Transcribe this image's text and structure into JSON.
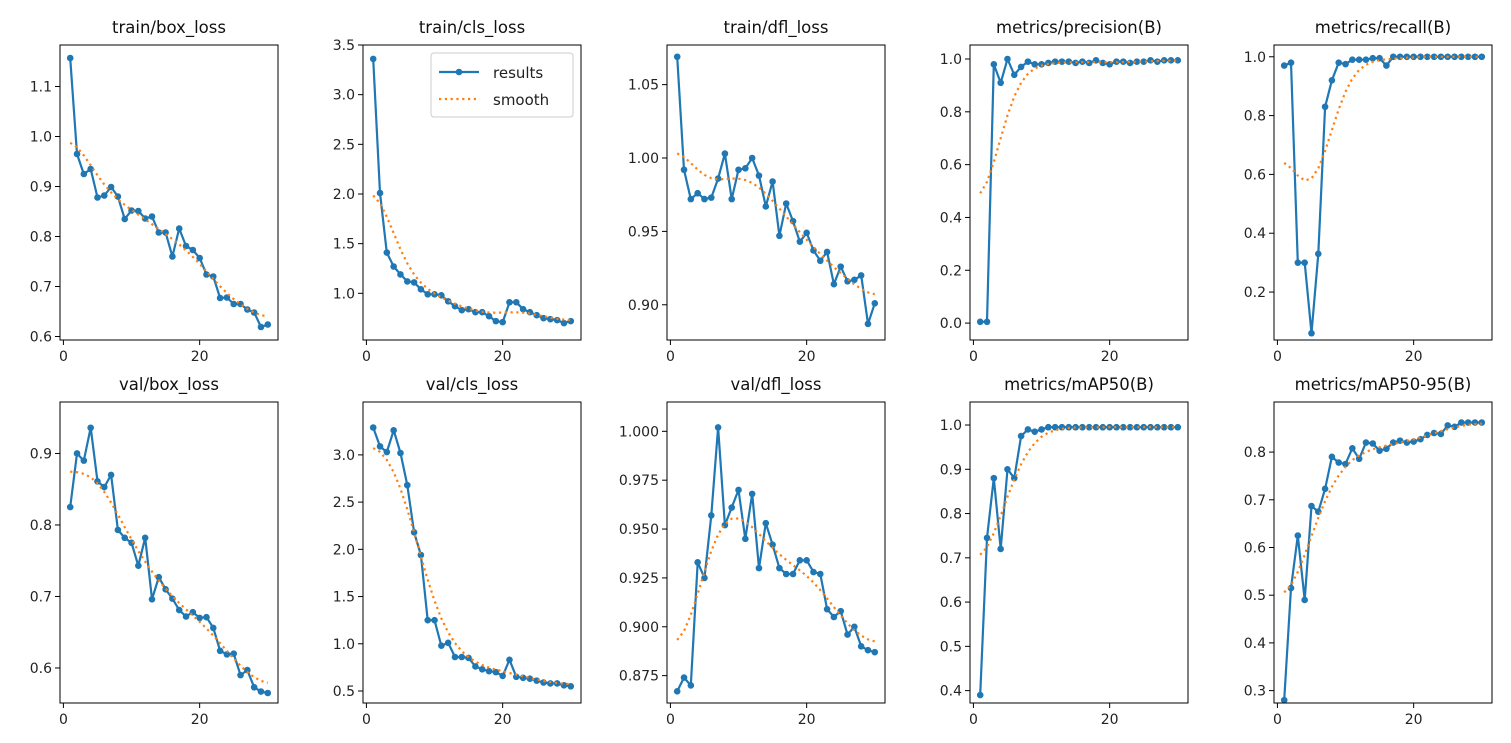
{
  "chart_data": [
    {
      "type": "line",
      "title": "train/box_loss",
      "x_range": [
        1,
        30
      ],
      "xticks": [
        0,
        20
      ],
      "ylim": [
        0.593,
        1.183
      ],
      "yticks": [
        0.6,
        0.7,
        0.8,
        0.9,
        1.0,
        1.1
      ],
      "ytick_labels": [
        "0.6",
        "0.7",
        "0.8",
        "0.9",
        "1.0",
        "1.1"
      ],
      "series": [
        {
          "name": "results",
          "values": [
            1.157,
            0.965,
            0.925,
            0.935,
            0.878,
            0.882,
            0.899,
            0.88,
            0.835,
            0.852,
            0.851,
            0.836,
            0.84,
            0.808,
            0.808,
            0.76,
            0.816,
            0.781,
            0.773,
            0.757,
            0.724,
            0.72,
            0.677,
            0.678,
            0.665,
            0.665,
            0.654,
            0.648,
            0.619,
            0.624
          ]
        }
      ]
    },
    {
      "type": "line",
      "title": "train/cls_loss",
      "x_range": [
        1,
        30
      ],
      "xticks": [
        0,
        20
      ],
      "ylim": [
        0.53,
        3.5
      ],
      "yticks": [
        1.0,
        1.5,
        2.0,
        2.5,
        3.0,
        3.5
      ],
      "ytick_labels": [
        "1.0",
        "1.5",
        "2.0",
        "2.5",
        "3.0",
        "3.5"
      ],
      "legend": [
        "results",
        "smooth"
      ],
      "legend_placement": "top-right",
      "series": [
        {
          "name": "results",
          "values": [
            3.36,
            2.01,
            1.41,
            1.27,
            1.19,
            1.12,
            1.11,
            1.04,
            0.99,
            0.99,
            0.98,
            0.92,
            0.87,
            0.83,
            0.84,
            0.81,
            0.81,
            0.77,
            0.72,
            0.71,
            0.91,
            0.91,
            0.84,
            0.81,
            0.78,
            0.75,
            0.74,
            0.73,
            0.7,
            0.72
          ]
        }
      ]
    },
    {
      "type": "line",
      "title": "train/dfl_loss",
      "x_range": [
        1,
        30
      ],
      "xticks": [
        0,
        20
      ],
      "ylim": [
        0.876,
        1.077
      ],
      "yticks": [
        0.9,
        0.95,
        1.0,
        1.05
      ],
      "ytick_labels": [
        "0.90",
        "0.95",
        "1.00",
        "1.05"
      ],
      "series": [
        {
          "name": "results",
          "values": [
            1.069,
            0.992,
            0.972,
            0.976,
            0.972,
            0.973,
            0.986,
            1.003,
            0.972,
            0.992,
            0.993,
            1.0,
            0.988,
            0.967,
            0.984,
            0.947,
            0.969,
            0.957,
            0.943,
            0.949,
            0.937,
            0.93,
            0.936,
            0.914,
            0.926,
            0.916,
            0.917,
            0.92,
            0.887,
            0.901
          ]
        }
      ]
    },
    {
      "type": "line",
      "title": "metrics/precision(B)",
      "x_range": [
        1,
        30
      ],
      "xticks": [
        0,
        20
      ],
      "ylim": [
        -0.064,
        1.053
      ],
      "yticks": [
        0,
        0.2,
        0.4,
        0.6,
        0.8,
        1.0
      ],
      "ytick_labels": [
        "0.0",
        "0.2",
        "0.4",
        "0.6",
        "0.8",
        "1.0"
      ],
      "series": [
        {
          "name": "results",
          "values": [
            0.005,
            0.005,
            0.98,
            0.91,
            1.0,
            0.94,
            0.97,
            0.99,
            0.98,
            0.98,
            0.985,
            0.99,
            0.99,
            0.99,
            0.985,
            0.99,
            0.985,
            0.995,
            0.985,
            0.98,
            0.99,
            0.99,
            0.985,
            0.99,
            0.99,
            0.995,
            0.99,
            0.995,
            0.995,
            0.995
          ]
        }
      ]
    },
    {
      "type": "line",
      "title": "metrics/recall(B)",
      "x_range": [
        1,
        30
      ],
      "xticks": [
        0,
        20
      ],
      "ylim": [
        0.037,
        1.04
      ],
      "yticks": [
        0.2,
        0.4,
        0.6,
        0.8,
        1.0
      ],
      "ytick_labels": [
        "0.2",
        "0.4",
        "0.6",
        "0.8",
        "1.0"
      ],
      "series": [
        {
          "name": "results",
          "values": [
            0.97,
            0.98,
            0.3,
            0.3,
            0.06,
            0.33,
            0.83,
            0.92,
            0.98,
            0.975,
            0.99,
            0.99,
            0.99,
            0.995,
            0.995,
            0.97,
            1,
            1,
            1,
            1,
            1,
            1,
            1,
            1,
            1,
            1,
            1,
            1,
            1,
            1
          ]
        }
      ]
    },
    {
      "type": "line",
      "title": "val/box_loss",
      "x_range": [
        1,
        30
      ],
      "xticks": [
        0,
        20
      ],
      "ylim": [
        0.551,
        0.972
      ],
      "yticks": [
        0.6,
        0.7,
        0.8,
        0.9
      ],
      "ytick_labels": [
        "0.6",
        "0.7",
        "0.8",
        "0.9"
      ],
      "series": [
        {
          "name": "results",
          "values": [
            0.825,
            0.9,
            0.89,
            0.936,
            0.861,
            0.853,
            0.87,
            0.793,
            0.782,
            0.775,
            0.743,
            0.782,
            0.696,
            0.727,
            0.71,
            0.697,
            0.681,
            0.672,
            0.678,
            0.67,
            0.671,
            0.656,
            0.624,
            0.619,
            0.62,
            0.59,
            0.597,
            0.573,
            0.567,
            0.565
          ]
        }
      ]
    },
    {
      "type": "line",
      "title": "val/cls_loss",
      "x_range": [
        1,
        30
      ],
      "xticks": [
        0,
        20
      ],
      "ylim": [
        0.373,
        3.56
      ],
      "yticks": [
        0.5,
        1.0,
        1.5,
        2.0,
        2.5,
        3.0
      ],
      "ytick_labels": [
        "0.5",
        "1.0",
        "1.5",
        "2.0",
        "2.5",
        "3.0"
      ],
      "series": [
        {
          "name": "results",
          "values": [
            3.29,
            3.09,
            3.03,
            3.26,
            3.02,
            2.68,
            2.18,
            1.94,
            1.25,
            1.25,
            0.98,
            1.01,
            0.86,
            0.86,
            0.85,
            0.76,
            0.73,
            0.71,
            0.7,
            0.66,
            0.83,
            0.65,
            0.64,
            0.63,
            0.61,
            0.59,
            0.58,
            0.58,
            0.56,
            0.55
          ]
        }
      ]
    },
    {
      "type": "line",
      "title": "val/dfl_loss",
      "x_range": [
        1,
        30
      ],
      "xticks": [
        0,
        20
      ],
      "ylim": [
        0.861,
        1.015
      ],
      "yticks": [
        0.875,
        0.9,
        0.925,
        0.95,
        0.975,
        1.0
      ],
      "ytick_labels": [
        "0.875",
        "0.900",
        "0.925",
        "0.950",
        "0.975",
        "1.000"
      ],
      "series": [
        {
          "name": "results",
          "values": [
            0.867,
            0.874,
            0.87,
            0.933,
            0.925,
            0.957,
            1.002,
            0.952,
            0.961,
            0.97,
            0.945,
            0.968,
            0.93,
            0.953,
            0.942,
            0.93,
            0.927,
            0.927,
            0.934,
            0.934,
            0.928,
            0.927,
            0.909,
            0.905,
            0.908,
            0.896,
            0.9,
            0.89,
            0.888,
            0.887
          ]
        }
      ]
    },
    {
      "type": "line",
      "title": "metrics/mAP50(B)",
      "x_range": [
        1,
        30
      ],
      "xticks": [
        0,
        20
      ],
      "ylim": [
        0.372,
        1.052
      ],
      "yticks": [
        0.4,
        0.5,
        0.6,
        0.7,
        0.8,
        0.9,
        1.0
      ],
      "ytick_labels": [
        "0.4",
        "0.5",
        "0.6",
        "0.7",
        "0.8",
        "0.9",
        "1.0"
      ],
      "series": [
        {
          "name": "results",
          "values": [
            0.39,
            0.745,
            0.88,
            0.72,
            0.9,
            0.88,
            0.975,
            0.99,
            0.985,
            0.99,
            0.995,
            0.995,
            0.995,
            0.995,
            0.995,
            0.995,
            0.995,
            0.995,
            0.995,
            0.995,
            0.995,
            0.995,
            0.995,
            0.995,
            0.995,
            0.995,
            0.995,
            0.995,
            0.995,
            0.995
          ]
        }
      ]
    },
    {
      "type": "line",
      "title": "metrics/mAP50-95(B)",
      "x_range": [
        1,
        30
      ],
      "xticks": [
        0,
        20
      ],
      "ylim": [
        0.274,
        0.905
      ],
      "yticks": [
        0.3,
        0.4,
        0.5,
        0.6,
        0.7,
        0.8
      ],
      "ytick_labels": [
        "0.3",
        "0.4",
        "0.5",
        "0.6",
        "0.7",
        "0.8"
      ],
      "series": [
        {
          "name": "results",
          "values": [
            0.28,
            0.515,
            0.625,
            0.49,
            0.687,
            0.675,
            0.723,
            0.79,
            0.778,
            0.775,
            0.808,
            0.786,
            0.82,
            0.818,
            0.803,
            0.807,
            0.82,
            0.824,
            0.82,
            0.822,
            0.827,
            0.836,
            0.84,
            0.838,
            0.856,
            0.853,
            0.862,
            0.862,
            0.862,
            0.862
          ]
        }
      ]
    }
  ],
  "legend": {
    "results_label": "results",
    "smooth_label": "smooth"
  },
  "colors": {
    "results": "#1f77b4",
    "smooth": "#ff7f0e"
  },
  "smooth_sigma": 3
}
